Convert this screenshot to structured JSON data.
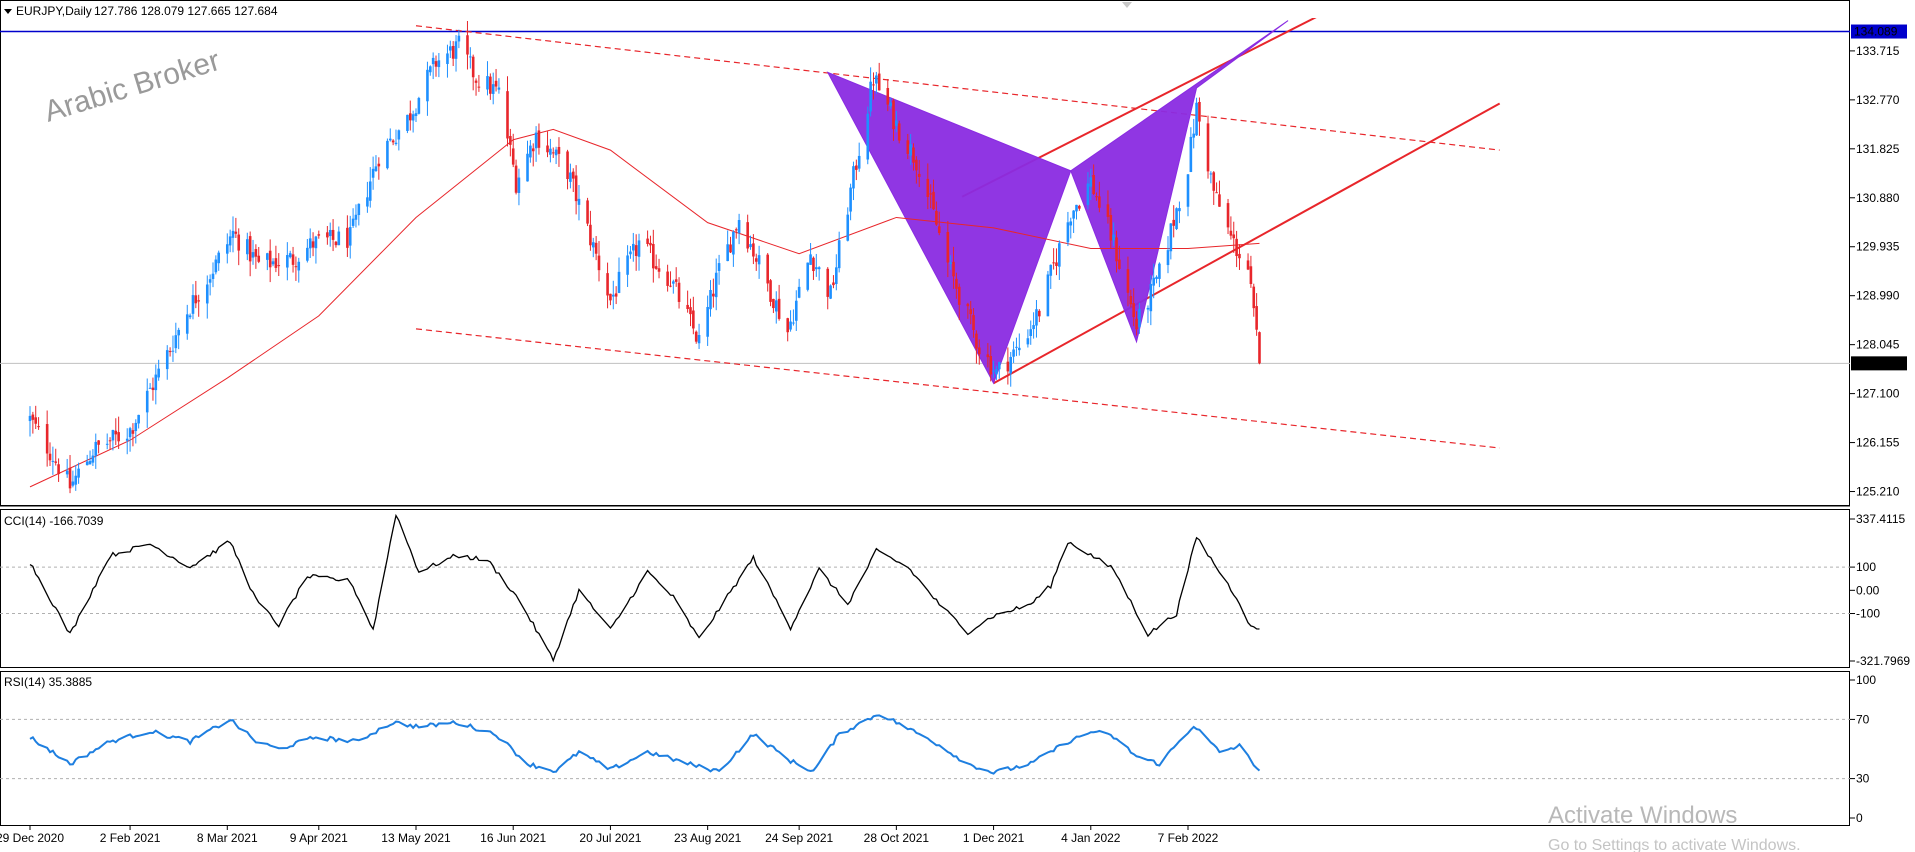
{
  "header": {
    "symbol": "EURJPY,Daily",
    "ohlc": "127.786 128.079 127.665 127.684",
    "watermark": "Arabic Broker"
  },
  "os_overlay": {
    "activate_title": "Activate Windows",
    "activate_sub": "Go to Settings to activate Windows."
  },
  "colors": {
    "bull": "#1e90ff",
    "bear": "#e8262b",
    "ma": "#e8262b",
    "pattern": "#8a2be2",
    "hline": "#0000cc",
    "cci": "#000000",
    "rsi": "#1e7fe0"
  },
  "chart_data": [
    {
      "type": "candlestick",
      "panel": "price",
      "title": "EURJPY,Daily",
      "x_tick_labels": [
        "29 Dec 2020",
        "2 Feb 2021",
        "8 Mar 2021",
        "9 Apr 2021",
        "13 May 2021",
        "16 Jun 2021",
        "20 Jul 2021",
        "23 Aug 2021",
        "24 Sep 2021",
        "28 Oct 2021",
        "1 Dec 2021",
        "4 Jan 2022",
        "7 Feb 2022"
      ],
      "y_tick_labels": [
        "133.715",
        "132.770",
        "131.825",
        "130.880",
        "129.935",
        "128.990",
        "128.045",
        "127.100",
        "126.155",
        "125.210"
      ],
      "ylim": [
        124.95,
        134.35
      ],
      "last_price": "127.684",
      "horizontal_line": "134.089",
      "anchors": [
        {
          "date": "2020-12-29",
          "close": 126.6
        },
        {
          "date": "2021-01-06",
          "close": 125.9
        },
        {
          "date": "2021-01-12",
          "close": 125.3
        },
        {
          "date": "2021-01-20",
          "close": 126.0
        },
        {
          "date": "2021-02-02",
          "close": 126.4
        },
        {
          "date": "2021-02-12",
          "close": 127.5
        },
        {
          "date": "2021-02-22",
          "close": 128.7
        },
        {
          "date": "2021-03-04",
          "close": 129.6
        },
        {
          "date": "2021-03-10",
          "close": 130.2
        },
        {
          "date": "2021-03-19",
          "close": 129.6
        },
        {
          "date": "2021-03-31",
          "close": 129.7
        },
        {
          "date": "2021-04-07",
          "close": 130.0
        },
        {
          "date": "2021-04-20",
          "close": 130.1
        },
        {
          "date": "2021-04-30",
          "close": 131.7
        },
        {
          "date": "2021-05-10",
          "close": 132.4
        },
        {
          "date": "2021-05-20",
          "close": 133.5
        },
        {
          "date": "2021-05-28",
          "close": 133.8
        },
        {
          "date": "2021-06-03",
          "close": 133.2
        },
        {
          "date": "2021-06-11",
          "close": 132.9
        },
        {
          "date": "2021-06-17",
          "close": 131.2
        },
        {
          "date": "2021-06-24",
          "close": 132.1
        },
        {
          "date": "2021-07-05",
          "close": 131.4
        },
        {
          "date": "2021-07-13",
          "close": 130.1
        },
        {
          "date": "2021-07-20",
          "close": 128.9
        },
        {
          "date": "2021-07-30",
          "close": 130.0
        },
        {
          "date": "2021-08-10",
          "close": 129.3
        },
        {
          "date": "2021-08-20",
          "close": 128.1
        },
        {
          "date": "2021-08-26",
          "close": 129.3
        },
        {
          "date": "2021-09-03",
          "close": 130.5
        },
        {
          "date": "2021-09-10",
          "close": 129.6
        },
        {
          "date": "2021-09-20",
          "close": 128.3
        },
        {
          "date": "2021-09-28",
          "close": 129.8
        },
        {
          "date": "2021-10-05",
          "close": 129.0
        },
        {
          "date": "2021-10-12",
          "close": 131.0
        },
        {
          "date": "2021-10-20",
          "close": 133.2
        },
        {
          "date": "2021-10-28",
          "close": 132.3
        },
        {
          "date": "2021-11-05",
          "close": 131.5
        },
        {
          "date": "2021-11-15",
          "close": 129.6
        },
        {
          "date": "2021-11-26",
          "close": 128.0
        },
        {
          "date": "2021-12-02",
          "close": 127.5
        },
        {
          "date": "2021-12-10",
          "close": 128.0
        },
        {
          "date": "2021-12-17",
          "close": 128.7
        },
        {
          "date": "2021-12-28",
          "close": 130.6
        },
        {
          "date": "2022-01-04",
          "close": 131.2
        },
        {
          "date": "2022-01-12",
          "close": 130.0
        },
        {
          "date": "2022-01-20",
          "close": 128.4
        },
        {
          "date": "2022-01-28",
          "close": 129.4
        },
        {
          "date": "2022-02-07",
          "close": 131.5
        },
        {
          "date": "2022-02-10",
          "close": 132.6
        },
        {
          "date": "2022-02-16",
          "close": 131.0
        },
        {
          "date": "2022-02-22",
          "close": 130.1
        },
        {
          "date": "2022-02-28",
          "close": 129.5
        },
        {
          "date": "2022-03-04",
          "close": 127.7
        }
      ],
      "moving_average": [
        {
          "date": "2020-12-29",
          "value": 125.3
        },
        {
          "date": "2021-02-02",
          "value": 126.2
        },
        {
          "date": "2021-03-08",
          "value": 127.4
        },
        {
          "date": "2021-04-09",
          "value": 128.6
        },
        {
          "date": "2021-05-13",
          "value": 130.5
        },
        {
          "date": "2021-06-16",
          "value": 132.0
        },
        {
          "date": "2021-06-30",
          "value": 132.2
        },
        {
          "date": "2021-07-20",
          "value": 131.8
        },
        {
          "date": "2021-08-23",
          "value": 130.4
        },
        {
          "date": "2021-09-24",
          "value": 129.8
        },
        {
          "date": "2021-10-28",
          "value": 130.5
        },
        {
          "date": "2021-12-01",
          "value": 130.3
        },
        {
          "date": "2022-01-04",
          "value": 129.9
        },
        {
          "date": "2022-02-07",
          "value": 129.9
        },
        {
          "date": "2022-03-04",
          "value": 130.0
        }
      ],
      "harmonic_pattern": {
        "pattern_1": [
          [
            "2021-10-04",
            133.3
          ],
          [
            "2021-12-01",
            127.3
          ],
          [
            "2021-12-28",
            131.4
          ],
          [
            "2021-10-04",
            133.3
          ]
        ],
        "pattern_2": [
          [
            "2021-12-28",
            131.4
          ],
          [
            "2022-01-20",
            128.1
          ],
          [
            "2022-02-10",
            133.0
          ],
          [
            "2022-03-14",
            134.3
          ]
        ]
      },
      "trendlines": [
        {
          "style": "solid",
          "from": [
            "2021-12-01",
            127.3
          ],
          "to": [
            "2022-05-27",
            132.7
          ]
        },
        {
          "style": "solid",
          "from": [
            "2021-11-20",
            130.9
          ],
          "to": [
            "2022-03-25",
            134.4
          ]
        },
        {
          "style": "dashed",
          "from": [
            "2021-05-13",
            134.2
          ],
          "to": [
            "2022-05-27",
            131.8
          ]
        },
        {
          "style": "dashed",
          "from": [
            "2021-05-13",
            128.35
          ],
          "to": [
            "2022-05-27",
            126.05
          ]
        }
      ]
    },
    {
      "type": "line",
      "panel": "indicator",
      "title": "CCI(14) -166.7039",
      "y_tick_labels": [
        "337.4115",
        "100",
        "0.00",
        "-100",
        "-321.7969"
      ],
      "ylim": [
        -321.7969,
        337.4115
      ],
      "levels": [
        100,
        -100
      ],
      "anchors": [
        {
          "date": "2020-12-29",
          "value": 120
        },
        {
          "date": "2021-01-12",
          "value": -190
        },
        {
          "date": "2021-01-26",
          "value": 150
        },
        {
          "date": "2021-02-09",
          "value": 200
        },
        {
          "date": "2021-02-23",
          "value": 100
        },
        {
          "date": "2021-03-09",
          "value": 210
        },
        {
          "date": "2021-03-18",
          "value": -40
        },
        {
          "date": "2021-03-26",
          "value": -150
        },
        {
          "date": "2021-04-05",
          "value": 60
        },
        {
          "date": "2021-04-20",
          "value": 40
        },
        {
          "date": "2021-04-28",
          "value": -170
        },
        {
          "date": "2021-05-06",
          "value": 330
        },
        {
          "date": "2021-05-14",
          "value": 80
        },
        {
          "date": "2021-05-27",
          "value": 150
        },
        {
          "date": "2021-06-07",
          "value": 130
        },
        {
          "date": "2021-06-18",
          "value": -40
        },
        {
          "date": "2021-06-30",
          "value": -300
        },
        {
          "date": "2021-07-09",
          "value": 0
        },
        {
          "date": "2021-07-20",
          "value": -170
        },
        {
          "date": "2021-08-02",
          "value": 80
        },
        {
          "date": "2021-08-11",
          "value": -30
        },
        {
          "date": "2021-08-20",
          "value": -210
        },
        {
          "date": "2021-09-08",
          "value": 140
        },
        {
          "date": "2021-09-21",
          "value": -160
        },
        {
          "date": "2021-10-01",
          "value": 90
        },
        {
          "date": "2021-10-11",
          "value": -60
        },
        {
          "date": "2021-10-21",
          "value": 170
        },
        {
          "date": "2021-11-01",
          "value": 100
        },
        {
          "date": "2021-11-12",
          "value": -60
        },
        {
          "date": "2021-11-22",
          "value": -180
        },
        {
          "date": "2021-12-01",
          "value": -110
        },
        {
          "date": "2021-12-14",
          "value": -60
        },
        {
          "date": "2021-12-21",
          "value": 20
        },
        {
          "date": "2021-12-27",
          "value": 210
        },
        {
          "date": "2022-01-03",
          "value": 160
        },
        {
          "date": "2022-01-12",
          "value": 90
        },
        {
          "date": "2022-01-24",
          "value": -190
        },
        {
          "date": "2022-02-03",
          "value": -100
        },
        {
          "date": "2022-02-10",
          "value": 230
        },
        {
          "date": "2022-02-18",
          "value": 80
        },
        {
          "date": "2022-02-25",
          "value": -50
        },
        {
          "date": "2022-03-01",
          "value": -160
        },
        {
          "date": "2022-03-04",
          "value": -166.7
        }
      ]
    },
    {
      "type": "line",
      "panel": "indicator",
      "title": "RSI(14) 35.3885",
      "y_tick_labels": [
        "100",
        "70",
        "30",
        "0"
      ],
      "ylim": [
        0,
        100
      ],
      "levels": [
        70,
        30
      ],
      "anchors": [
        {
          "date": "2020-12-29",
          "value": 58
        },
        {
          "date": "2021-01-12",
          "value": 40
        },
        {
          "date": "2021-01-26",
          "value": 55
        },
        {
          "date": "2021-02-09",
          "value": 62
        },
        {
          "date": "2021-02-23",
          "value": 55
        },
        {
          "date": "2021-03-09",
          "value": 70
        },
        {
          "date": "2021-03-18",
          "value": 55
        },
        {
          "date": "2021-03-26",
          "value": 50
        },
        {
          "date": "2021-04-08",
          "value": 58
        },
        {
          "date": "2021-04-22",
          "value": 55
        },
        {
          "date": "2021-05-05",
          "value": 68
        },
        {
          "date": "2021-05-14",
          "value": 65
        },
        {
          "date": "2021-05-27",
          "value": 68
        },
        {
          "date": "2021-06-10",
          "value": 60
        },
        {
          "date": "2021-06-21",
          "value": 40
        },
        {
          "date": "2021-07-01",
          "value": 35
        },
        {
          "date": "2021-07-09",
          "value": 48
        },
        {
          "date": "2021-07-20",
          "value": 36
        },
        {
          "date": "2021-08-02",
          "value": 48
        },
        {
          "date": "2021-08-20",
          "value": 38
        },
        {
          "date": "2021-08-27",
          "value": 35
        },
        {
          "date": "2021-09-08",
          "value": 60
        },
        {
          "date": "2021-09-21",
          "value": 42
        },
        {
          "date": "2021-09-29",
          "value": 35
        },
        {
          "date": "2021-10-08",
          "value": 60
        },
        {
          "date": "2021-10-22",
          "value": 74
        },
        {
          "date": "2021-10-28",
          "value": 68
        },
        {
          "date": "2021-11-10",
          "value": 55
        },
        {
          "date": "2021-11-22",
          "value": 40
        },
        {
          "date": "2021-12-01",
          "value": 34
        },
        {
          "date": "2021-12-14",
          "value": 40
        },
        {
          "date": "2021-12-27",
          "value": 55
        },
        {
          "date": "2022-01-05",
          "value": 62
        },
        {
          "date": "2022-01-12",
          "value": 58
        },
        {
          "date": "2022-01-20",
          "value": 45
        },
        {
          "date": "2022-01-28",
          "value": 40
        },
        {
          "date": "2022-02-09",
          "value": 66
        },
        {
          "date": "2022-02-18",
          "value": 48
        },
        {
          "date": "2022-02-25",
          "value": 52
        },
        {
          "date": "2022-03-04",
          "value": 35.4
        }
      ]
    }
  ]
}
